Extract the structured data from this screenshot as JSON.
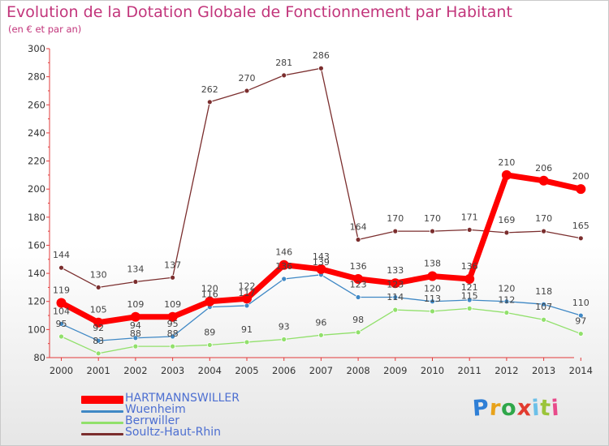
{
  "title": "Evolution de la Dotation Globale de Fonctionnement par Habitant",
  "subtitle": "(en € et par an)",
  "logo": {
    "text": "Proxiti",
    "colors": [
      "#2f7fd6",
      "#e8a21a",
      "#2fa74a",
      "#e23b2f",
      "#6cc0e8",
      "#9bc43a",
      "#e84a8a"
    ]
  },
  "chart_data": {
    "type": "line",
    "title": "Evolution de la Dotation Globale de Fonctionnement par Habitant",
    "subtitle": "(en € et par an)",
    "xlabel": "",
    "ylabel": "",
    "x": [
      "2000",
      "2001",
      "2002",
      "2003",
      "2004",
      "2005",
      "2006",
      "2007",
      "2008",
      "2009",
      "2010",
      "2011",
      "2012",
      "2013",
      "2014"
    ],
    "ylim": [
      80,
      300
    ],
    "yticks": [
      "80",
      "100",
      "120",
      "140",
      "160",
      "180",
      "200",
      "220",
      "240",
      "260",
      "280",
      "300"
    ],
    "grid": false,
    "legend_position": "bottom-left",
    "series": [
      {
        "name": "HARTMANNSWILLER",
        "color": "#ff0000",
        "values": [
          119,
          105,
          109,
          109,
          120,
          122,
          146,
          143,
          136,
          133,
          138,
          136,
          210,
          206,
          200
        ],
        "labels": [
          "119",
          "105",
          "109",
          "109",
          "120",
          "122",
          "146",
          "143",
          "136",
          "133",
          "138",
          "136",
          "210",
          "206",
          "200"
        ]
      },
      {
        "name": "Wuenheim",
        "color": "#3f88c5",
        "values": [
          104,
          92,
          94,
          95,
          116,
          117,
          136,
          139,
          123,
          123,
          120,
          121,
          120,
          118,
          110
        ],
        "labels": [
          "104",
          "92",
          "94",
          "95",
          "116",
          "117",
          "136",
          "139",
          "123",
          "123",
          "120",
          "121",
          "120",
          "118",
          "110"
        ]
      },
      {
        "name": "Berrwiller",
        "color": "#91e06b",
        "values": [
          95,
          83,
          88,
          88,
          89,
          91,
          93,
          96,
          98,
          114,
          113,
          115,
          112,
          107,
          97
        ],
        "labels": [
          "95",
          "83",
          "88",
          "88",
          "89",
          "91",
          "93",
          "96",
          "98",
          "114",
          "113",
          "115",
          "112",
          "107",
          "97"
        ]
      },
      {
        "name": "Soultz-Haut-Rhin",
        "color": "#7b2e2e",
        "values": [
          144,
          130,
          134,
          137,
          262,
          270,
          281,
          286,
          164,
          170,
          170,
          171,
          169,
          170,
          165
        ],
        "labels": [
          "144",
          "130",
          "134",
          "137",
          "262",
          "270",
          "281",
          "286",
          "164",
          "170",
          "170",
          "171",
          "169",
          "170",
          "165"
        ]
      }
    ]
  }
}
